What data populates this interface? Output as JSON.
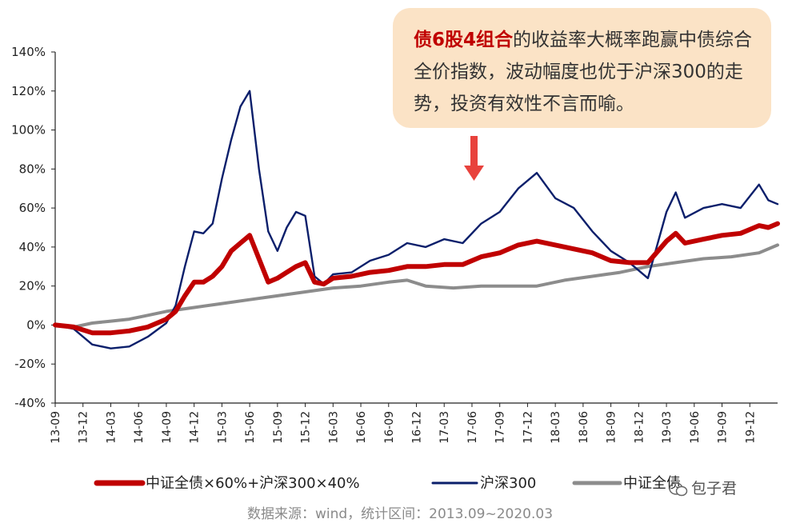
{
  "callout": {
    "highlight": "债6股4组合",
    "text": "的收益率大概率跑赢中债综合全价指数，波动幅度也优于沪深300的走势，投资有效性不言而喻。"
  },
  "source": "数据来源：wind，统计区间：2013.09~2020.03",
  "watermark": "包子君",
  "colors": {
    "combo": "#c00000",
    "hs300": "#0b1f6b",
    "bond": "#8c8c8c",
    "arrow": "#e8423c",
    "callout_bg": "#fbe3c6"
  },
  "chart_data": {
    "type": "line",
    "ylim": [
      -40,
      140
    ],
    "y_ticks": [
      "-40%",
      "-20%",
      "0%",
      "20%",
      "40%",
      "60%",
      "80%",
      "100%",
      "120%",
      "140%"
    ],
    "y_tick_values": [
      -40,
      -20,
      0,
      20,
      40,
      60,
      80,
      100,
      120,
      140
    ],
    "x_ticks": [
      "13-09",
      "13-12",
      "14-03",
      "14-06",
      "14-09",
      "14-12",
      "15-03",
      "15-06",
      "15-09",
      "15-12",
      "16-03",
      "16-06",
      "16-09",
      "16-12",
      "17-03",
      "17-06",
      "17-09",
      "17-12",
      "18-03",
      "18-06",
      "18-09",
      "18-12",
      "19-03",
      "19-06",
      "19-09",
      "19-12"
    ],
    "x_range": [
      "2013-09",
      "2020-03"
    ],
    "grid": false,
    "legend_position": "bottom",
    "series": [
      {
        "name": "中证全债×60%+沪深300×40%",
        "color": "#c00000",
        "points": [
          [
            "2013-09",
            0
          ],
          [
            "2013-11",
            -1
          ],
          [
            "2014-01",
            -4
          ],
          [
            "2014-03",
            -4
          ],
          [
            "2014-05",
            -3
          ],
          [
            "2014-07",
            -1
          ],
          [
            "2014-09",
            3
          ],
          [
            "2014-10",
            7
          ],
          [
            "2014-11",
            15
          ],
          [
            "2014-12",
            22
          ],
          [
            "2015-01",
            22
          ],
          [
            "2015-02",
            25
          ],
          [
            "2015-03",
            30
          ],
          [
            "2015-04",
            38
          ],
          [
            "2015-05",
            42
          ],
          [
            "2015-06",
            46
          ],
          [
            "2015-07",
            34
          ],
          [
            "2015-08",
            22
          ],
          [
            "2015-09",
            24
          ],
          [
            "2015-10",
            27
          ],
          [
            "2015-11",
            30
          ],
          [
            "2015-12",
            32
          ],
          [
            "2016-01",
            22
          ],
          [
            "2016-02",
            21
          ],
          [
            "2016-03",
            24
          ],
          [
            "2016-05",
            25
          ],
          [
            "2016-07",
            27
          ],
          [
            "2016-09",
            28
          ],
          [
            "2016-11",
            30
          ],
          [
            "2017-01",
            30
          ],
          [
            "2017-03",
            31
          ],
          [
            "2017-05",
            31
          ],
          [
            "2017-07",
            35
          ],
          [
            "2017-09",
            37
          ],
          [
            "2017-11",
            41
          ],
          [
            "2018-01",
            43
          ],
          [
            "2018-03",
            41
          ],
          [
            "2018-05",
            39
          ],
          [
            "2018-07",
            37
          ],
          [
            "2018-09",
            33
          ],
          [
            "2018-11",
            32
          ],
          [
            "2019-01",
            32
          ],
          [
            "2019-03",
            43
          ],
          [
            "2019-04",
            47
          ],
          [
            "2019-05",
            42
          ],
          [
            "2019-07",
            44
          ],
          [
            "2019-09",
            46
          ],
          [
            "2019-11",
            47
          ],
          [
            "2020-01",
            51
          ],
          [
            "2020-02",
            50
          ],
          [
            "2020-03",
            52
          ]
        ]
      },
      {
        "name": "沪深300",
        "color": "#0b1f6b",
        "points": [
          [
            "2013-09",
            0
          ],
          [
            "2013-11",
            -2
          ],
          [
            "2014-01",
            -10
          ],
          [
            "2014-03",
            -12
          ],
          [
            "2014-05",
            -11
          ],
          [
            "2014-07",
            -6
          ],
          [
            "2014-09",
            1
          ],
          [
            "2014-10",
            10
          ],
          [
            "2014-11",
            30
          ],
          [
            "2014-12",
            48
          ],
          [
            "2015-01",
            47
          ],
          [
            "2015-02",
            52
          ],
          [
            "2015-03",
            75
          ],
          [
            "2015-04",
            95
          ],
          [
            "2015-05",
            112
          ],
          [
            "2015-06",
            120
          ],
          [
            "2015-07",
            80
          ],
          [
            "2015-08",
            48
          ],
          [
            "2015-09",
            38
          ],
          [
            "2015-10",
            50
          ],
          [
            "2015-11",
            58
          ],
          [
            "2015-12",
            56
          ],
          [
            "2016-01",
            25
          ],
          [
            "2016-02",
            21
          ],
          [
            "2016-03",
            26
          ],
          [
            "2016-05",
            27
          ],
          [
            "2016-07",
            33
          ],
          [
            "2016-09",
            36
          ],
          [
            "2016-11",
            42
          ],
          [
            "2017-01",
            40
          ],
          [
            "2017-03",
            44
          ],
          [
            "2017-05",
            42
          ],
          [
            "2017-07",
            52
          ],
          [
            "2017-09",
            58
          ],
          [
            "2017-11",
            70
          ],
          [
            "2018-01",
            78
          ],
          [
            "2018-03",
            65
          ],
          [
            "2018-05",
            60
          ],
          [
            "2018-07",
            48
          ],
          [
            "2018-09",
            38
          ],
          [
            "2018-11",
            32
          ],
          [
            "2019-01",
            24
          ],
          [
            "2019-03",
            58
          ],
          [
            "2019-04",
            68
          ],
          [
            "2019-05",
            55
          ],
          [
            "2019-07",
            60
          ],
          [
            "2019-09",
            62
          ],
          [
            "2019-11",
            60
          ],
          [
            "2020-01",
            72
          ],
          [
            "2020-02",
            64
          ],
          [
            "2020-03",
            62
          ]
        ]
      },
      {
        "name": "中证全债",
        "color": "#8c8c8c",
        "points": [
          [
            "2013-09",
            0
          ],
          [
            "2013-11",
            -1
          ],
          [
            "2014-01",
            1
          ],
          [
            "2014-03",
            2
          ],
          [
            "2014-05",
            3
          ],
          [
            "2014-07",
            5
          ],
          [
            "2014-09",
            7
          ],
          [
            "2014-12",
            9
          ],
          [
            "2015-03",
            11
          ],
          [
            "2015-06",
            13
          ],
          [
            "2015-09",
            15
          ],
          [
            "2015-12",
            17
          ],
          [
            "2016-03",
            19
          ],
          [
            "2016-06",
            20
          ],
          [
            "2016-09",
            22
          ],
          [
            "2016-11",
            23
          ],
          [
            "2017-01",
            20
          ],
          [
            "2017-04",
            19
          ],
          [
            "2017-07",
            20
          ],
          [
            "2017-10",
            20
          ],
          [
            "2018-01",
            20
          ],
          [
            "2018-04",
            23
          ],
          [
            "2018-07",
            25
          ],
          [
            "2018-10",
            27
          ],
          [
            "2019-01",
            30
          ],
          [
            "2019-04",
            32
          ],
          [
            "2019-07",
            34
          ],
          [
            "2019-10",
            35
          ],
          [
            "2020-01",
            37
          ],
          [
            "2020-03",
            41
          ]
        ]
      }
    ]
  }
}
